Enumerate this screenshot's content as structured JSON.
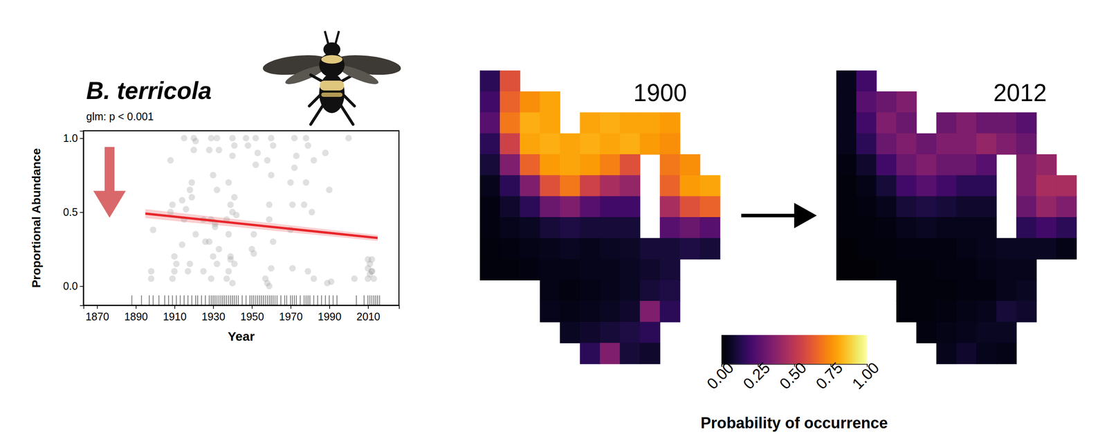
{
  "chart_data": [
    {
      "type": "scatter",
      "title": "B. terricola",
      "subtitle": "glm: p < 0.001",
      "x_label": "Year",
      "y_label": "Proportional Abundance",
      "xlim": [
        1863,
        2026
      ],
      "xticks": [
        1870,
        1890,
        1910,
        1930,
        1950,
        1970,
        1990,
        2010
      ],
      "ylim": [
        -0.13,
        1.05
      ],
      "yticks": [
        {
          "value": 0,
          "label": "0.0"
        },
        {
          "value": 0.5,
          "label": "0.5"
        },
        {
          "value": 1,
          "label": "1.0"
        }
      ],
      "color": "#999999",
      "x": [
        1898,
        1898,
        1899,
        1908,
        1909,
        1908,
        1910,
        1911,
        1910,
        1909,
        1915,
        1914,
        1916,
        1915,
        1914,
        1918,
        1919,
        1918,
        1917,
        1920,
        1921,
        1920,
        1919,
        1921,
        1925,
        1926,
        1925,
        1929,
        1928,
        1930,
        1929,
        1931,
        1928,
        1930,
        1929,
        1932,
        1933,
        1932,
        1931,
        1933,
        1932,
        1938,
        1939,
        1937,
        1938,
        1939,
        1938,
        1937,
        1940,
        1941,
        1940,
        1941,
        1940,
        1939,
        1941,
        1940,
        1942,
        1947,
        1948,
        1950,
        1951,
        1952,
        1953,
        1952,
        1951,
        1958,
        1959,
        1958,
        1957,
        1960,
        1961,
        1960,
        1959,
        1961,
        1960,
        1959,
        1970,
        1971,
        1970,
        1972,
        1973,
        1972,
        1971,
        1978,
        1979,
        1978,
        1977,
        1979,
        1982,
        1981,
        1982,
        1988,
        1989,
        1990,
        1991,
        2000,
        2003,
        2010,
        2011,
        2010,
        2012,
        2011,
        2010,
        2012,
        2013,
        2012
      ],
      "y": [
        0.1,
        0.05,
        0.38,
        0.85,
        0.55,
        0.5,
        0.2,
        0.15,
        0.1,
        0.05,
        1.0,
        0.58,
        0.52,
        0.45,
        0.28,
        0.65,
        0.6,
        0.15,
        0.1,
        1.0,
        0.98,
        0.92,
        0.7,
        0.35,
        0.45,
        0.3,
        0.1,
        1.0,
        0.92,
        0.75,
        0.45,
        0.4,
        0.3,
        0.2,
        0.05,
        1.0,
        0.92,
        0.65,
        0.42,
        0.25,
        0.15,
        0.7,
        0.55,
        0.45,
        0.35,
        0.18,
        0.1,
        0.05,
        1.0,
        0.95,
        0.88,
        0.6,
        0.5,
        0.2,
        0.15,
        0.02,
        0.48,
        1.0,
        0.95,
        0.25,
        0.35,
        1.0,
        0.9,
        0.82,
        0.22,
        0.85,
        0.45,
        0.02,
        0.05,
        1.0,
        0.95,
        0.75,
        0.55,
        0.3,
        0.12,
        0.0,
        0.7,
        0.55,
        0.38,
        1.0,
        0.88,
        0.8,
        0.12,
        1.0,
        0.95,
        0.7,
        0.55,
        0.1,
        0.85,
        0.5,
        0.05,
        0.9,
        0.02,
        0.65,
        0.03,
        1.0,
        0.05,
        0.18,
        0.15,
        0.12,
        0.1,
        0.08,
        0.05,
        0.1,
        0.05,
        0.18
      ],
      "trend": {
        "x": [
          1895,
          2015
        ],
        "values": [
          0.49,
          0.325
        ],
        "lower": [
          0.46,
          0.305
        ],
        "upper": [
          0.52,
          0.345
        ],
        "color": "#e8262a"
      },
      "rug": [
        1888,
        1893,
        1897,
        1899,
        1902,
        1905,
        1907,
        1909,
        1911,
        1913,
        1915,
        1917,
        1919,
        1921,
        1922,
        1924,
        1926,
        1928,
        1929,
        1930,
        1931,
        1932,
        1933,
        1934,
        1935,
        1936,
        1937,
        1938,
        1939,
        1940,
        1941,
        1942,
        1943,
        1945,
        1947,
        1949,
        1950,
        1951,
        1952,
        1953,
        1954,
        1955,
        1956,
        1957,
        1958,
        1959,
        1960,
        1961,
        1962,
        1963,
        1965,
        1967,
        1968,
        1970,
        1971,
        1972,
        1973,
        1975,
        1977,
        1978,
        1979,
        1980,
        1982,
        1984,
        1986,
        1988,
        1990,
        1992,
        1994,
        2004,
        2008,
        2010,
        2011,
        2012,
        2013,
        2014,
        2015,
        2016
      ]
    },
    {
      "type": "heatmap",
      "title": "1900",
      "cells": [
        [
          0.15,
          0.6,
          null,
          null,
          null,
          null,
          null,
          null,
          null,
          null,
          null,
          null
        ],
        [
          0.2,
          0.65,
          0.75,
          0.8,
          null,
          null,
          null,
          null,
          null,
          null,
          null,
          null
        ],
        [
          0.25,
          0.7,
          0.82,
          0.8,
          null,
          0.8,
          0.82,
          0.8,
          0.8,
          0.78,
          null,
          null
        ],
        [
          0.15,
          0.55,
          0.8,
          0.82,
          0.8,
          0.82,
          0.8,
          0.82,
          0.78,
          0.75,
          null,
          null
        ],
        [
          0.1,
          0.35,
          0.65,
          0.78,
          0.8,
          0.78,
          0.72,
          0.6,
          null,
          0.7,
          0.75,
          null
        ],
        [
          0.05,
          0.15,
          0.35,
          0.6,
          0.7,
          0.55,
          0.45,
          0.4,
          null,
          0.65,
          0.78,
          0.8
        ],
        [
          0.03,
          0.08,
          0.15,
          0.3,
          0.35,
          0.25,
          0.2,
          0.2,
          null,
          0.45,
          0.6,
          0.65
        ],
        [
          0.03,
          0.05,
          0.06,
          0.1,
          0.12,
          0.1,
          0.1,
          0.1,
          null,
          0.25,
          0.3,
          0.25
        ],
        [
          0.02,
          0.03,
          0.04,
          0.05,
          0.06,
          0.05,
          0.06,
          0.07,
          0.1,
          0.1,
          0.12,
          0.1
        ],
        [
          0.02,
          0.02,
          0.03,
          0.04,
          0.04,
          0.05,
          0.05,
          0.06,
          0.08,
          0.1,
          null,
          null
        ],
        [
          null,
          null,
          null,
          0.04,
          0.03,
          0.04,
          0.05,
          0.06,
          0.1,
          0.12,
          null,
          null
        ],
        [
          null,
          null,
          null,
          0.05,
          0.04,
          0.05,
          0.06,
          0.08,
          0.35,
          0.15,
          null,
          null
        ],
        [
          null,
          null,
          null,
          null,
          0.06,
          0.08,
          0.1,
          0.12,
          0.15,
          null,
          null,
          null
        ],
        [
          null,
          null,
          null,
          null,
          null,
          0.15,
          0.35,
          0.1,
          0.08,
          null,
          null,
          null
        ]
      ]
    },
    {
      "type": "heatmap",
      "title": "2012",
      "cells": [
        [
          0.05,
          0.2,
          null,
          null,
          null,
          null,
          null,
          null,
          null,
          null,
          null,
          null
        ],
        [
          0.05,
          0.25,
          0.3,
          0.35,
          null,
          null,
          null,
          null,
          null,
          null,
          null,
          null
        ],
        [
          0.05,
          0.2,
          0.35,
          0.3,
          null,
          0.3,
          0.35,
          0.3,
          0.3,
          0.25,
          null,
          null
        ],
        [
          0.05,
          0.15,
          0.3,
          0.35,
          0.3,
          0.35,
          0.35,
          0.4,
          0.35,
          0.3,
          null,
          null
        ],
        [
          0.03,
          0.08,
          0.2,
          0.3,
          0.35,
          0.3,
          0.3,
          0.25,
          null,
          0.35,
          0.4,
          null
        ],
        [
          0.02,
          0.04,
          0.1,
          0.2,
          0.25,
          0.2,
          0.15,
          0.15,
          null,
          0.35,
          0.45,
          0.45
        ],
        [
          0.02,
          0.03,
          0.05,
          0.1,
          0.12,
          0.1,
          0.08,
          0.08,
          null,
          0.3,
          0.4,
          0.35
        ],
        [
          0.02,
          0.02,
          0.03,
          0.05,
          0.06,
          0.05,
          0.05,
          0.05,
          null,
          0.15,
          0.2,
          0.15
        ],
        [
          0.01,
          0.02,
          0.02,
          0.03,
          0.03,
          0.03,
          0.04,
          0.05,
          0.06,
          0.06,
          0.06,
          0.04
        ],
        [
          0.01,
          0.01,
          0.02,
          0.02,
          0.02,
          0.03,
          0.03,
          0.04,
          0.05,
          0.05,
          null,
          null
        ],
        [
          null,
          null,
          null,
          0.02,
          0.02,
          0.02,
          0.03,
          0.03,
          0.05,
          0.06,
          null,
          null
        ],
        [
          null,
          null,
          null,
          0.02,
          0.02,
          0.03,
          0.04,
          0.05,
          0.1,
          0.08,
          null,
          null
        ],
        [
          null,
          null,
          null,
          null,
          0.03,
          0.04,
          0.05,
          0.06,
          0.06,
          null,
          null,
          null
        ],
        [
          null,
          null,
          null,
          null,
          null,
          0.05,
          0.08,
          0.05,
          0.04,
          null,
          null,
          null
        ]
      ],
      "colorbar": {
        "range": [
          0,
          1
        ],
        "ticks": [
          {
            "value": 0,
            "label": "0.00"
          },
          {
            "value": 0.25,
            "label": "0.25"
          },
          {
            "value": 0.5,
            "label": "0.50"
          },
          {
            "value": 0.75,
            "label": "0.75"
          },
          {
            "value": 1,
            "label": "1.00"
          }
        ],
        "label": "Probability of occurrence"
      }
    }
  ]
}
